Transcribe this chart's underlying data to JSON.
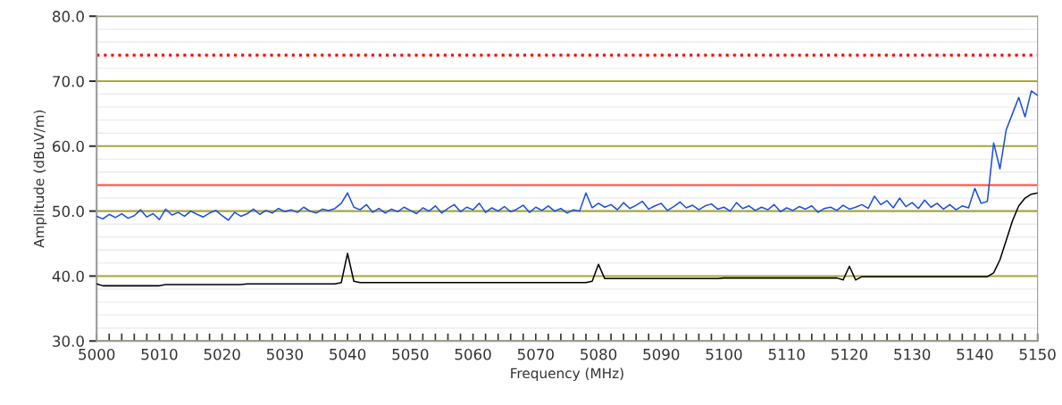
{
  "chart_data": {
    "type": "line",
    "xlabel": "Frequency (MHz)",
    "ylabel": "Amplitude (dBuV/m)",
    "x": [
      5000,
      5001,
      5002,
      5003,
      5004,
      5005,
      5006,
      5007,
      5008,
      5009,
      5010,
      5011,
      5012,
      5013,
      5014,
      5015,
      5016,
      5017,
      5018,
      5019,
      5020,
      5021,
      5022,
      5023,
      5024,
      5025,
      5026,
      5027,
      5028,
      5029,
      5030,
      5031,
      5032,
      5033,
      5034,
      5035,
      5036,
      5037,
      5038,
      5039,
      5040,
      5041,
      5042,
      5043,
      5044,
      5045,
      5046,
      5047,
      5048,
      5049,
      5050,
      5051,
      5052,
      5053,
      5054,
      5055,
      5056,
      5057,
      5058,
      5059,
      5060,
      5061,
      5062,
      5063,
      5064,
      5065,
      5066,
      5067,
      5068,
      5069,
      5070,
      5071,
      5072,
      5073,
      5074,
      5075,
      5076,
      5077,
      5078,
      5079,
      5080,
      5081,
      5082,
      5083,
      5084,
      5085,
      5086,
      5087,
      5088,
      5089,
      5090,
      5091,
      5092,
      5093,
      5094,
      5095,
      5096,
      5097,
      5098,
      5099,
      5100,
      5101,
      5102,
      5103,
      5104,
      5105,
      5106,
      5107,
      5108,
      5109,
      5110,
      5111,
      5112,
      5113,
      5114,
      5115,
      5116,
      5117,
      5118,
      5119,
      5120,
      5121,
      5122,
      5123,
      5124,
      5125,
      5126,
      5127,
      5128,
      5129,
      5130,
      5131,
      5132,
      5133,
      5134,
      5135,
      5136,
      5137,
      5138,
      5139,
      5140,
      5141,
      5142,
      5143,
      5144,
      5145,
      5146,
      5147,
      5148,
      5149,
      5150
    ],
    "series": [
      {
        "color": "#1a4fe0",
        "values": [
          49.2,
          48.8,
          49.5,
          49.0,
          49.6,
          48.9,
          49.3,
          50.2,
          49.1,
          49.6,
          48.7,
          50.3,
          49.4,
          49.8,
          49.2,
          50.0,
          49.5,
          49.1,
          49.7,
          50.1,
          49.3,
          48.6,
          49.8,
          49.2,
          49.6,
          50.3,
          49.5,
          50.1,
          49.7,
          50.4,
          49.9,
          50.2,
          49.8,
          50.6,
          50.0,
          49.7,
          50.3,
          50.1,
          50.4,
          51.2,
          52.8,
          50.6,
          50.2,
          51.0,
          49.8,
          50.4,
          49.7,
          50.3,
          49.9,
          50.6,
          50.1,
          49.6,
          50.5,
          50.0,
          50.8,
          49.7,
          50.4,
          51.0,
          49.9,
          50.6,
          50.2,
          51.2,
          49.8,
          50.5,
          50.0,
          50.7,
          49.9,
          50.3,
          50.9,
          49.8,
          50.6,
          50.1,
          50.8,
          50.0,
          50.4,
          49.7,
          50.2,
          50.0,
          52.8,
          50.5,
          51.2,
          50.6,
          51.0,
          50.2,
          51.3,
          50.4,
          50.9,
          51.5,
          50.3,
          50.8,
          51.2,
          50.1,
          50.7,
          51.4,
          50.5,
          50.9,
          50.2,
          50.8,
          51.1,
          50.3,
          50.6,
          50.0,
          51.3,
          50.4,
          50.8,
          50.1,
          50.6,
          50.2,
          51.0,
          49.9,
          50.5,
          50.1,
          50.7,
          50.3,
          50.8,
          49.8,
          50.4,
          50.6,
          50.1,
          50.9,
          50.3,
          50.6,
          51.0,
          50.4,
          52.3,
          51.0,
          51.6,
          50.5,
          52.0,
          50.7,
          51.3,
          50.4,
          51.7,
          50.6,
          51.2,
          50.3,
          51.0,
          50.2,
          50.8,
          50.5,
          53.5,
          51.2,
          51.5,
          60.5,
          56.5,
          62.5,
          65.0,
          67.5,
          64.5,
          68.5,
          67.8
        ]
      },
      {
        "color": "#000000",
        "values": [
          38.8,
          38.5,
          38.5,
          38.5,
          38.5,
          38.5,
          38.5,
          38.5,
          38.5,
          38.5,
          38.5,
          38.7,
          38.7,
          38.7,
          38.7,
          38.7,
          38.7,
          38.7,
          38.7,
          38.7,
          38.7,
          38.7,
          38.7,
          38.7,
          38.8,
          38.8,
          38.8,
          38.8,
          38.8,
          38.8,
          38.8,
          38.8,
          38.8,
          38.8,
          38.8,
          38.8,
          38.8,
          38.8,
          38.8,
          39.0,
          43.5,
          39.2,
          39.0,
          39.0,
          39.0,
          39.0,
          39.0,
          39.0,
          39.0,
          39.0,
          39.0,
          39.0,
          39.0,
          39.0,
          39.0,
          39.0,
          39.0,
          39.0,
          39.0,
          39.0,
          39.0,
          39.0,
          39.0,
          39.0,
          39.0,
          39.0,
          39.0,
          39.0,
          39.0,
          39.0,
          39.0,
          39.0,
          39.0,
          39.0,
          39.0,
          39.0,
          39.0,
          39.0,
          39.0,
          39.2,
          41.8,
          39.6,
          39.6,
          39.6,
          39.6,
          39.6,
          39.6,
          39.6,
          39.6,
          39.6,
          39.6,
          39.6,
          39.6,
          39.6,
          39.6,
          39.6,
          39.6,
          39.6,
          39.6,
          39.6,
          39.7,
          39.7,
          39.7,
          39.7,
          39.7,
          39.7,
          39.7,
          39.7,
          39.7,
          39.7,
          39.7,
          39.7,
          39.7,
          39.7,
          39.7,
          39.7,
          39.7,
          39.7,
          39.7,
          39.4,
          41.5,
          39.4,
          39.9,
          39.9,
          39.9,
          39.9,
          39.9,
          39.9,
          39.9,
          39.9,
          39.9,
          39.9,
          39.9,
          39.9,
          39.9,
          39.9,
          39.9,
          39.9,
          39.9,
          39.9,
          39.9,
          39.9,
          39.9,
          40.5,
          42.5,
          45.5,
          48.5,
          50.8,
          52.0,
          52.6,
          52.8
        ]
      }
    ],
    "xlim": [
      5000,
      5150
    ],
    "xticks": [
      5000,
      {
        "value": 5002,
        "label": null
      },
      {
        "value": 5004,
        "label": null
      },
      {
        "value": 5006,
        "label": null
      },
      {
        "value": 5008,
        "label": null
      },
      5010,
      {
        "value": 5012,
        "label": null
      },
      {
        "value": 5014,
        "label": null
      },
      {
        "value": 5016,
        "label": null
      },
      {
        "value": 5018,
        "label": null
      },
      5020,
      {
        "value": 5022,
        "label": null
      },
      {
        "value": 5024,
        "label": null
      },
      {
        "value": 5026,
        "label": null
      },
      {
        "value": 5028,
        "label": null
      },
      5030,
      {
        "value": 5032,
        "label": null
      },
      {
        "value": 5034,
        "label": null
      },
      {
        "value": 5036,
        "label": null
      },
      {
        "value": 5038,
        "label": null
      },
      5040,
      {
        "value": 5042,
        "label": null
      },
      {
        "value": 5044,
        "label": null
      },
      {
        "value": 5046,
        "label": null
      },
      {
        "value": 5048,
        "label": null
      },
      5050,
      {
        "value": 5052,
        "label": null
      },
      {
        "value": 5054,
        "label": null
      },
      {
        "value": 5056,
        "label": null
      },
      {
        "value": 5058,
        "label": null
      },
      5060,
      {
        "value": 5062,
        "label": null
      },
      {
        "value": 5064,
        "label": null
      },
      {
        "value": 5066,
        "label": null
      },
      {
        "value": 5068,
        "label": null
      },
      5070,
      {
        "value": 5072,
        "label": null
      },
      {
        "value": 5074,
        "label": null
      },
      {
        "value": 5076,
        "label": null
      },
      {
        "value": 5078,
        "label": null
      },
      5080,
      {
        "value": 5082,
        "label": null
      },
      {
        "value": 5084,
        "label": null
      },
      {
        "value": 5086,
        "label": null
      },
      {
        "value": 5088,
        "label": null
      },
      5090,
      {
        "value": 5092,
        "label": null
      },
      {
        "value": 5094,
        "label": null
      },
      {
        "value": 5096,
        "label": null
      },
      {
        "value": 5098,
        "label": null
      },
      5100,
      {
        "value": 5102,
        "label": null
      },
      {
        "value": 5104,
        "label": null
      },
      {
        "value": 5106,
        "label": null
      },
      {
        "value": 5108,
        "label": null
      },
      5110,
      {
        "value": 5112,
        "label": null
      },
      {
        "value": 5114,
        "label": null
      },
      {
        "value": 5116,
        "label": null
      },
      {
        "value": 5118,
        "label": null
      },
      5120,
      {
        "value": 5122,
        "label": null
      },
      {
        "value": 5124,
        "label": null
      },
      {
        "value": 5126,
        "label": null
      },
      {
        "value": 5128,
        "label": null
      },
      5130,
      {
        "value": 5132,
        "label": null
      },
      {
        "value": 5134,
        "label": null
      },
      {
        "value": 5136,
        "label": null
      },
      {
        "value": 5138,
        "label": null
      },
      5140,
      {
        "value": 5142,
        "label": null
      },
      {
        "value": 5144,
        "label": null
      },
      {
        "value": 5146,
        "label": null
      },
      {
        "value": 5148,
        "label": null
      },
      5150
    ],
    "ylim": [
      30,
      80
    ],
    "yticks": [
      {
        "value": 30,
        "label": "30.0"
      },
      {
        "value": 32,
        "label": null
      },
      {
        "value": 34,
        "label": null
      },
      {
        "value": 36,
        "label": null
      },
      {
        "value": 38,
        "label": null
      },
      {
        "value": 40,
        "label": "40.0"
      },
      {
        "value": 42,
        "label": null
      },
      {
        "value": 44,
        "label": null
      },
      {
        "value": 46,
        "label": null
      },
      {
        "value": 48,
        "label": null
      },
      {
        "value": 50,
        "label": "50.0"
      },
      {
        "value": 52,
        "label": null
      },
      {
        "value": 54,
        "label": null
      },
      {
        "value": 56,
        "label": null
      },
      {
        "value": 58,
        "label": null
      },
      {
        "value": 60,
        "label": "60.0"
      },
      {
        "value": 62,
        "label": null
      },
      {
        "value": 64,
        "label": null
      },
      {
        "value": 66,
        "label": null
      },
      {
        "value": 68,
        "label": null
      },
      {
        "value": 70,
        "label": "70.0"
      },
      {
        "value": 72,
        "label": null
      },
      {
        "value": 74,
        "label": null
      },
      {
        "value": 76,
        "label": null
      },
      {
        "value": 78,
        "label": null
      },
      {
        "value": 80,
        "label": "80.0"
      }
    ],
    "ref_lines": [
      {
        "axis": "y",
        "value": 74,
        "color": "#ff0000",
        "line_style": "dotted"
      },
      {
        "axis": "y",
        "value": 54,
        "color": "#ff4b3a",
        "line_style": "solid"
      }
    ],
    "grid": "y",
    "legend": false,
    "line_style": "solid",
    "marker": "none"
  }
}
